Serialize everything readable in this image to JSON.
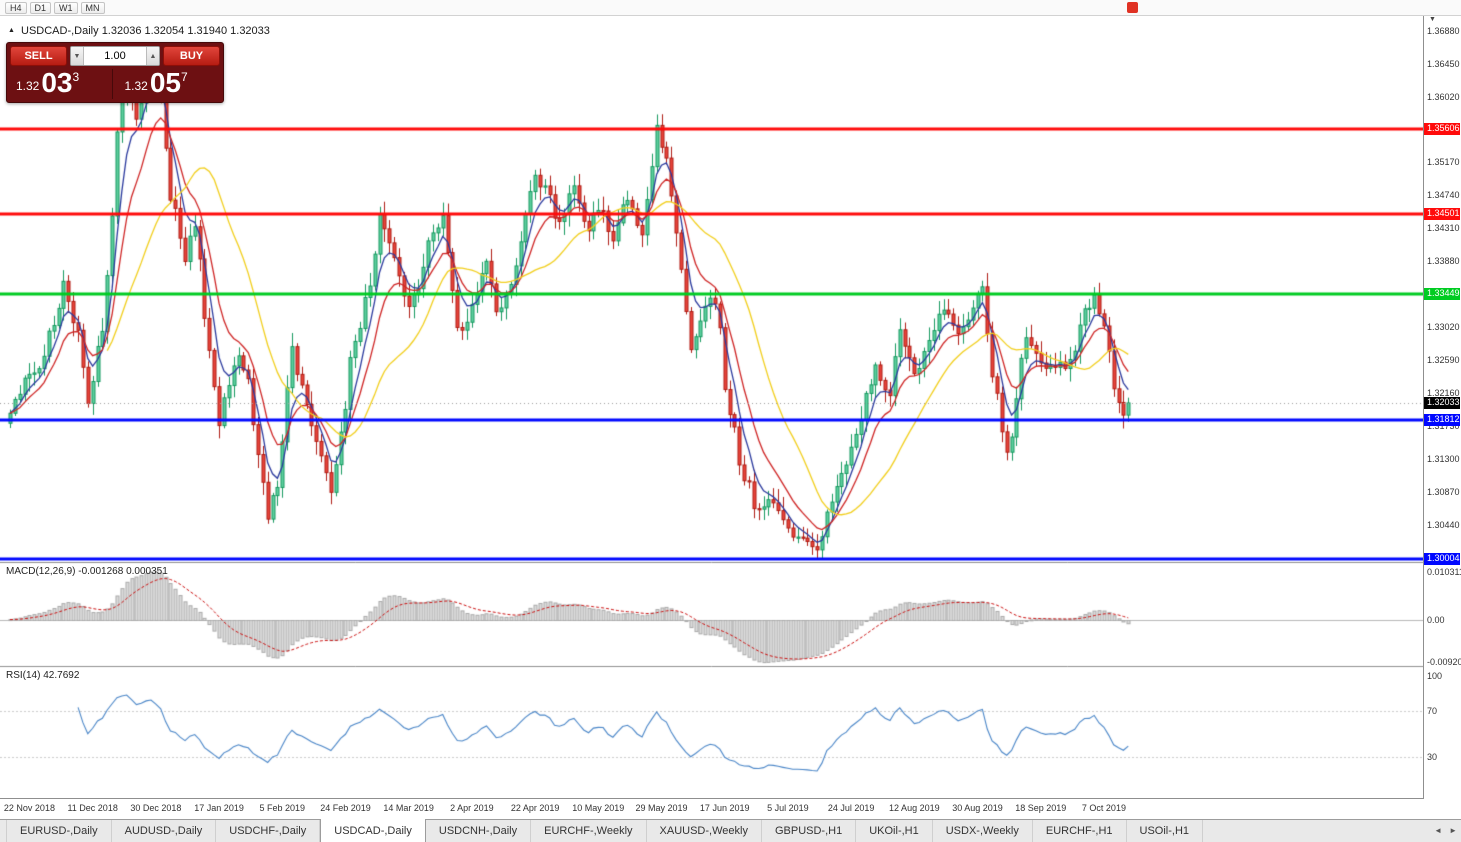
{
  "toolbar": {
    "timeframes": [
      "H4",
      "D1",
      "W1",
      "MN"
    ]
  },
  "header": {
    "collapse_icon": "▲",
    "symbol_title": "USDCAD-,Daily",
    "ohlc": "1.32036 1.32054 1.31940 1.32033"
  },
  "one_click": {
    "sell_label": "SELL",
    "buy_label": "BUY",
    "volume": "1.00",
    "spin_down": "▼",
    "spin_up": "▲",
    "sell_price": {
      "prefix": "1.32",
      "big": "03",
      "sup": "3"
    },
    "buy_price": {
      "prefix": "1.32",
      "big": "05",
      "sup": "7"
    }
  },
  "indicators": {
    "macd_label": "MACD(12,26,9) -0.001268 0.000351",
    "rsi_label": "RSI(14) 42.7692"
  },
  "price_axis": {
    "ticks": [
      "1.36880",
      "1.36450",
      "1.36020",
      "1.35170",
      "1.34740",
      "1.34310",
      "1.33880",
      "1.33020",
      "1.32590",
      "1.32160",
      "1.31730",
      "1.31300",
      "1.30870",
      "1.30440"
    ],
    "macd_ticks": [
      {
        "label": "0.010311",
        "value": 0.010311
      },
      {
        "label": "0.00",
        "value": 0
      },
      {
        "label": "-0.00920",
        "value": -0.0092
      }
    ],
    "rsi_ticks": [
      {
        "label": "100",
        "value": 100
      },
      {
        "label": "70",
        "value": 70
      },
      {
        "label": "30",
        "value": 30
      }
    ]
  },
  "levels": [
    {
      "label": "1.35606",
      "value": 1.35606,
      "color": "#ff0b0b"
    },
    {
      "label": "1.34501",
      "value": 1.34501,
      "color": "#ff0b0b"
    },
    {
      "label": "1.33449",
      "value": 1.33449,
      "color": "#00cc22"
    },
    {
      "label": "1.31812",
      "value": 1.31812,
      "color": "#0008ff"
    },
    {
      "label": "1.30004",
      "value": 1.30004,
      "color": "#0008ff"
    }
  ],
  "current_price": {
    "label": "1.32033",
    "value": 1.32033,
    "color": "#000000"
  },
  "date_axis": {
    "labels": [
      "22 Nov 2018",
      "11 Dec 2018",
      "30 Dec 2018",
      "17 Jan 2019",
      "5 Feb 2019",
      "24 Feb 2019",
      "14 Mar 2019",
      "2 Apr 2019",
      "22 Apr 2019",
      "10 May 2019",
      "29 May 2019",
      "17 Jun 2019",
      "5 Jul 2019",
      "24 Jul 2019",
      "12 Aug 2019",
      "30 Aug 2019",
      "18 Sep 2019",
      "7 Oct 2019"
    ]
  },
  "tabbar": {
    "active_index": 3,
    "tabs": [
      "EURUSD-,Daily",
      "AUDUSD-,Daily",
      "USDCHF-,Daily",
      "USDCAD-,Daily",
      "USDCNH-,Daily",
      "EURCHF-,Weekly",
      "XAUUSD-,Weekly",
      "GBPUSD-,H1",
      "UKOil-,H1",
      "USDX-,Weekly",
      "EURCHF-,H1",
      "USOil-,H1"
    ],
    "scroll_left": "◄",
    "scroll_right": "►"
  },
  "chart_data": {
    "type": "candlestick",
    "title": "USDCAD-,Daily",
    "x_axis": {
      "tick_labels": [
        "22 Nov 2018",
        "11 Dec 2018",
        "30 Dec 2018",
        "17 Jan 2019",
        "5 Feb 2019",
        "24 Feb 2019",
        "14 Mar 2019",
        "2 Apr 2019",
        "22 Apr 2019",
        "10 May 2019",
        "29 May 2019",
        "17 Jun 2019",
        "5 Jul 2019",
        "24 Jul 2019",
        "12 Aug 2019",
        "30 Aug 2019",
        "18 Sep 2019",
        "7 Oct 2019"
      ],
      "first_tick_candle_index": 4,
      "candles_per_tick": 13
    },
    "y_axis": {
      "top": 1.37075,
      "bottom": 1.2996,
      "tick_step": 0.0043
    },
    "candles_count": 231,
    "last_close": 1.32033,
    "close_waypoints": [
      [
        0,
        1.3195
      ],
      [
        5,
        1.3245
      ],
      [
        9,
        1.33
      ],
      [
        11,
        1.336
      ],
      [
        14,
        1.329
      ],
      [
        16,
        1.321
      ],
      [
        19,
        1.33
      ],
      [
        21,
        1.345
      ],
      [
        22,
        1.356
      ],
      [
        24,
        1.362
      ],
      [
        26,
        1.3575
      ],
      [
        29,
        1.3655
      ],
      [
        31,
        1.36
      ],
      [
        33,
        1.347
      ],
      [
        36,
        1.339
      ],
      [
        38,
        1.344
      ],
      [
        41,
        1.327
      ],
      [
        43,
        1.318
      ],
      [
        45,
        1.323
      ],
      [
        47,
        1.327
      ],
      [
        49,
        1.323
      ],
      [
        51,
        1.313
      ],
      [
        53,
        1.306
      ],
      [
        55,
        1.31
      ],
      [
        58,
        1.327
      ],
      [
        60,
        1.322
      ],
      [
        63,
        1.315
      ],
      [
        66,
        1.3095
      ],
      [
        68,
        1.316
      ],
      [
        71,
        1.329
      ],
      [
        74,
        1.335
      ],
      [
        76,
        1.3445
      ],
      [
        79,
        1.339
      ],
      [
        82,
        1.333
      ],
      [
        84,
        1.336
      ],
      [
        87,
        1.343
      ],
      [
        89,
        1.344
      ],
      [
        92,
        1.331
      ],
      [
        93,
        1.329
      ],
      [
        95,
        1.333
      ],
      [
        98,
        1.338
      ],
      [
        100,
        1.332
      ],
      [
        103,
        1.335
      ],
      [
        105,
        1.342
      ],
      [
        108,
        1.35
      ],
      [
        110,
        1.348
      ],
      [
        113,
        1.344
      ],
      [
        116,
        1.348
      ],
      [
        119,
        1.343
      ],
      [
        121,
        1.346
      ],
      [
        124,
        1.342
      ],
      [
        127,
        1.347
      ],
      [
        130,
        1.343
      ],
      [
        132,
        1.351
      ],
      [
        133,
        1.3565
      ],
      [
        135,
        1.352
      ],
      [
        136,
        1.348
      ],
      [
        138,
        1.338
      ],
      [
        140,
        1.328
      ],
      [
        143,
        1.333
      ],
      [
        145,
        1.334
      ],
      [
        148,
        1.319
      ],
      [
        151,
        1.311
      ],
      [
        154,
        1.306
      ],
      [
        157,
        1.308
      ],
      [
        160,
        1.304
      ],
      [
        163,
        1.3025
      ],
      [
        166,
        1.3012
      ],
      [
        169,
        1.308
      ],
      [
        172,
        1.313
      ],
      [
        174,
        1.316
      ],
      [
        176,
        1.321
      ],
      [
        178,
        1.3245
      ],
      [
        181,
        1.322
      ],
      [
        183,
        1.33
      ],
      [
        186,
        1.324
      ],
      [
        189,
        1.329
      ],
      [
        192,
        1.332
      ],
      [
        195,
        1.329
      ],
      [
        197,
        1.331
      ],
      [
        200,
        1.336
      ],
      [
        202,
        1.323
      ],
      [
        205,
        1.3145
      ],
      [
        209,
        1.328
      ],
      [
        212,
        1.326
      ],
      [
        215,
        1.3245
      ],
      [
        218,
        1.326
      ],
      [
        221,
        1.332
      ],
      [
        223,
        1.334
      ],
      [
        225,
        1.33
      ],
      [
        227,
        1.323
      ],
      [
        229,
        1.318
      ],
      [
        230,
        1.32033
      ]
    ],
    "levels": [
      1.35606,
      1.34501,
      1.33449,
      1.31812,
      1.30004
    ],
    "moving_averages": [
      {
        "name": "fast",
        "type": "ema",
        "period": 5,
        "color": "#2b3a9e"
      },
      {
        "name": "mid",
        "type": "ema",
        "period": 10,
        "color": "#cf2525"
      },
      {
        "name": "slow",
        "type": "sma",
        "period": 21,
        "color": "#f2cf1d"
      }
    ],
    "macd": {
      "fast": 12,
      "slow": 26,
      "signal": 9,
      "current": -0.001268,
      "current_signal": 0.000351,
      "range_max": 0.010311,
      "range_min": -0.0092,
      "histogram_fill": "#dcdcdc",
      "histogram_stroke": "#aaaaaa",
      "signal_color": "#cc1111"
    },
    "rsi": {
      "period": 14,
      "current": 42.7692,
      "color": "#4a86c8",
      "levels": [
        70,
        30
      ]
    },
    "candle_colors": {
      "up_fill": "#5ecf9f",
      "up_stroke": "#169a60",
      "down_fill": "#e8443b",
      "down_stroke": "#b01d15"
    },
    "noise_seed": 20191014
  }
}
